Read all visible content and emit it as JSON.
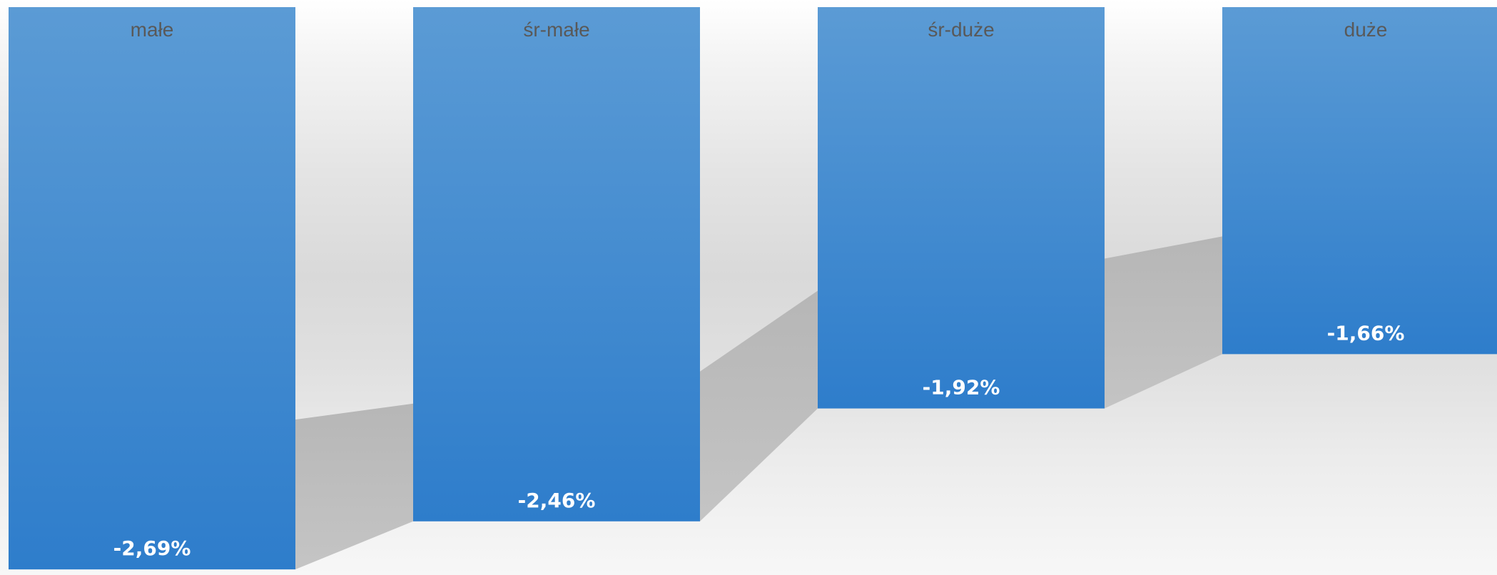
{
  "chart_data": {
    "type": "bar",
    "title": "",
    "xlabel": "",
    "ylabel": "",
    "orientation": "vertical",
    "categories": [
      "małe",
      "śr-małe",
      "śr-duże",
      "duże"
    ],
    "values": [
      -2.69,
      -2.46,
      -1.92,
      -1.66
    ],
    "data_labels": [
      "-2,69%",
      "-2,46%",
      "-1,92%",
      "-1,66%"
    ],
    "unit": "%",
    "grid": false,
    "legend": "none",
    "category_label_position": "top",
    "data_label_position": "inside-end",
    "style": "3d-shadow",
    "colors": {
      "bar_top": "#5b9bd5",
      "bar_bottom": "#2e7dcb",
      "shadow": "#b0b0b0",
      "category_text": "#595959",
      "value_text": "#ffffff"
    }
  }
}
